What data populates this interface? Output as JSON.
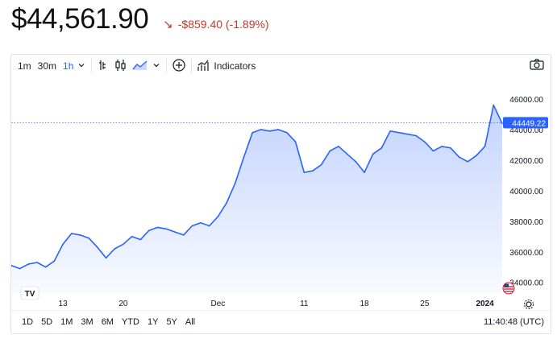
{
  "header": {
    "price": "$44,561.90",
    "change": "-$859.40 (-1.89%)",
    "change_color": "#c0392b"
  },
  "toolbar": {
    "intervals": [
      "1m",
      "30m",
      "1h"
    ],
    "active_interval": "1h",
    "indicators_label": "Indicators"
  },
  "chart_data": {
    "type": "area",
    "ylim": [
      33300,
      47000
    ],
    "yticks": [
      "46000.00",
      "44000.00",
      "42000.00",
      "40000.00",
      "38000.00",
      "36000.00",
      "34000.00"
    ],
    "xtick_labels": [
      "13",
      "20",
      "Dec",
      "11",
      "18",
      "25",
      "2024"
    ],
    "last_price_label": "44449.22",
    "last_price": 44449.22,
    "line_color": "#2962ff",
    "grid": false,
    "series": [
      {
        "x": [
          "Nov 07",
          "Nov 08",
          "Nov 09",
          "Nov 10",
          "Nov 11",
          "Nov 12",
          "Nov 13",
          "Nov 14",
          "Nov 15",
          "Nov 16",
          "Nov 17",
          "Nov 18",
          "Nov 19",
          "Nov 20",
          "Nov 21",
          "Nov 22",
          "Nov 23",
          "Nov 24",
          "Nov 25",
          "Nov 26",
          "Nov 27",
          "Nov 28",
          "Nov 29",
          "Nov 30",
          "Dec 01",
          "Dec 02",
          "Dec 03",
          "Dec 04",
          "Dec 05",
          "Dec 06",
          "Dec 07",
          "Dec 08",
          "Dec 09",
          "Dec 10",
          "Dec 11",
          "Dec 12",
          "Dec 13",
          "Dec 14",
          "Dec 15",
          "Dec 16",
          "Dec 17",
          "Dec 18",
          "Dec 19",
          "Dec 20",
          "Dec 21",
          "Dec 22",
          "Dec 23",
          "Dec 24",
          "Dec 25",
          "Dec 26",
          "Dec 27",
          "Dec 28",
          "Dec 29",
          "Dec 30",
          "Dec 31",
          "Jan 01",
          "Jan 02",
          "Jan 03"
        ],
        "values": [
          35100,
          34900,
          35200,
          35300,
          35000,
          35400,
          36500,
          37200,
          37100,
          36900,
          36300,
          35600,
          36200,
          36500,
          37000,
          36800,
          37400,
          37600,
          37500,
          37300,
          37100,
          37700,
          37900,
          37700,
          38300,
          39200,
          40500,
          42200,
          43800,
          44000,
          43900,
          44000,
          43800,
          43200,
          41200,
          41300,
          41700,
          42600,
          42900,
          42400,
          41900,
          41200,
          42400,
          42800,
          43900,
          43800,
          43700,
          43600,
          43200,
          42600,
          42900,
          42800,
          42200,
          41900,
          42300,
          42900,
          45600,
          44400
        ]
      }
    ]
  },
  "bottombar": {
    "ranges": [
      "1D",
      "5D",
      "1M",
      "3M",
      "6M",
      "YTD",
      "1Y",
      "5Y",
      "All"
    ],
    "clock": "11:40:48 (UTC)"
  },
  "icons": {
    "toolbar": [
      "chevron-down-icon",
      "bar-chart-icon",
      "candlestick-icon",
      "area-chart-icon",
      "chevron-down-icon",
      "add-compare-icon",
      "indicators-icon"
    ],
    "others": [
      "camera-icon",
      "tradingview-logo-icon",
      "us-flag-icon",
      "settings-icon"
    ]
  }
}
